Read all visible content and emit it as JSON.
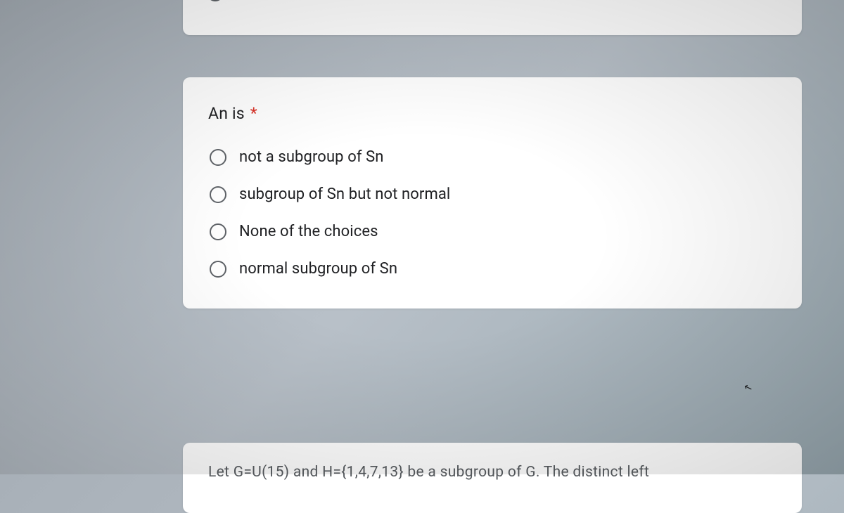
{
  "question": {
    "title": "An is",
    "required": true,
    "options": [
      {
        "label": "not a subgroup of Sn"
      },
      {
        "label": "subgroup of Sn but not normal"
      },
      {
        "label": "None of the choices"
      },
      {
        "label": "normal subgroup of Sn"
      }
    ]
  },
  "partial_next": "Let G=U(15) and H={1,4,7,13} be a subgroup of G. The distinct left",
  "colors": {
    "card_bg": "#ffffff",
    "page_bg": "#a8b0b8",
    "text": "#202124",
    "radio_border": "#5f6368",
    "required": "#d93025"
  }
}
